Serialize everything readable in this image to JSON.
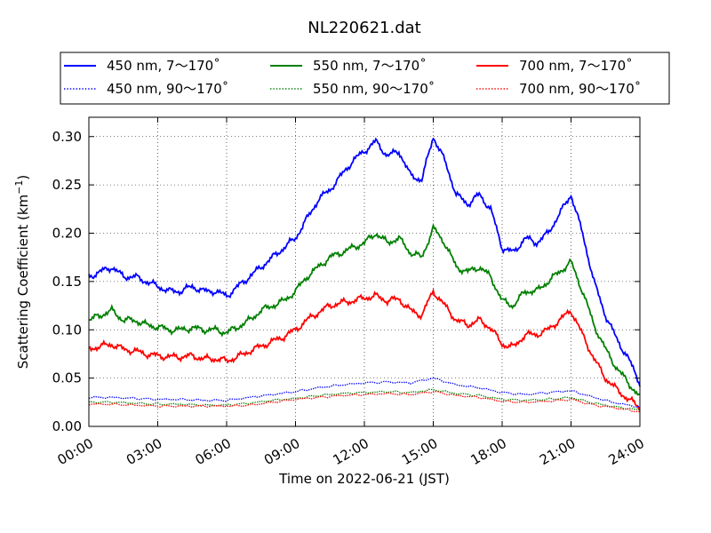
{
  "chart_data": {
    "type": "line",
    "title": "NL220621.dat",
    "xlabel": "Time on 2022-06-21 (JST)",
    "ylabel": "Scattering Coefficient (km",
    "ylabel_sup": "−1",
    "ylabel_end": ")",
    "xlim": [
      0,
      24
    ],
    "ylim": [
      0,
      0.32
    ],
    "x_ticks": [
      0,
      3,
      6,
      9,
      12,
      15,
      18,
      21,
      24
    ],
    "x_tick_labels": [
      "00:00",
      "03:00",
      "06:00",
      "09:00",
      "12:00",
      "15:00",
      "18:00",
      "21:00",
      "24:00"
    ],
    "y_ticks": [
      0.0,
      0.05,
      0.1,
      0.15,
      0.2,
      0.25,
      0.3
    ],
    "y_tick_labels": [
      "0.00",
      "0.05",
      "0.10",
      "0.15",
      "0.20",
      "0.25",
      "0.30"
    ],
    "grid": true,
    "legend_position": "top",
    "series": [
      {
        "name": "450 nm, 7～170˚",
        "color": "#0000ff",
        "style": "solid",
        "x": [
          0,
          0.5,
          1,
          1.5,
          2,
          2.5,
          3,
          3.5,
          4,
          4.5,
          5,
          5.5,
          6,
          6.5,
          7,
          7.5,
          8,
          8.5,
          9,
          9.5,
          10,
          10.5,
          11,
          11.5,
          12,
          12.5,
          13,
          13.5,
          14,
          14.5,
          15,
          15.5,
          16,
          16.5,
          17,
          17.5,
          18,
          18.5,
          19,
          19.5,
          20,
          20.5,
          21,
          21.5,
          22,
          22.5,
          23,
          23.5,
          24
        ],
        "y": [
          0.155,
          0.16,
          0.165,
          0.155,
          0.155,
          0.15,
          0.145,
          0.14,
          0.14,
          0.145,
          0.14,
          0.14,
          0.135,
          0.145,
          0.155,
          0.165,
          0.175,
          0.185,
          0.195,
          0.215,
          0.235,
          0.245,
          0.26,
          0.275,
          0.285,
          0.295,
          0.28,
          0.285,
          0.26,
          0.255,
          0.3,
          0.275,
          0.24,
          0.23,
          0.24,
          0.225,
          0.185,
          0.18,
          0.195,
          0.19,
          0.2,
          0.22,
          0.24,
          0.2,
          0.15,
          0.115,
          0.09,
          0.07,
          0.045
        ]
      },
      {
        "name": "550 nm, 7～170˚",
        "color": "#008000",
        "style": "solid",
        "x": [
          0,
          0.5,
          1,
          1.5,
          2,
          2.5,
          3,
          3.5,
          4,
          4.5,
          5,
          5.5,
          6,
          6.5,
          7,
          7.5,
          8,
          8.5,
          9,
          9.5,
          10,
          10.5,
          11,
          11.5,
          12,
          12.5,
          13,
          13.5,
          14,
          14.5,
          15,
          15.5,
          16,
          16.5,
          17,
          17.5,
          18,
          18.5,
          19,
          19.5,
          20,
          20.5,
          21,
          21.5,
          22,
          22.5,
          23,
          23.5,
          24
        ],
        "y": [
          0.11,
          0.115,
          0.12,
          0.11,
          0.11,
          0.105,
          0.103,
          0.1,
          0.1,
          0.102,
          0.1,
          0.1,
          0.097,
          0.103,
          0.11,
          0.12,
          0.125,
          0.13,
          0.14,
          0.155,
          0.165,
          0.175,
          0.18,
          0.185,
          0.19,
          0.2,
          0.19,
          0.195,
          0.18,
          0.175,
          0.205,
          0.19,
          0.165,
          0.16,
          0.165,
          0.155,
          0.13,
          0.125,
          0.14,
          0.14,
          0.15,
          0.16,
          0.17,
          0.14,
          0.105,
          0.08,
          0.06,
          0.045,
          0.03
        ]
      },
      {
        "name": "700 nm, 7～170˚",
        "color": "#ff0000",
        "style": "solid",
        "x": [
          0,
          0.5,
          1,
          1.5,
          2,
          2.5,
          3,
          3.5,
          4,
          4.5,
          5,
          5.5,
          6,
          6.5,
          7,
          7.5,
          8,
          8.5,
          9,
          9.5,
          10,
          10.5,
          11,
          11.5,
          12,
          12.5,
          13,
          13.5,
          14,
          14.5,
          15,
          15.5,
          16,
          16.5,
          17,
          17.5,
          18,
          18.5,
          19,
          19.5,
          20,
          20.5,
          21,
          21.5,
          22,
          22.5,
          23,
          23.5,
          24
        ],
        "y": [
          0.08,
          0.083,
          0.085,
          0.08,
          0.078,
          0.075,
          0.073,
          0.072,
          0.072,
          0.073,
          0.07,
          0.07,
          0.068,
          0.072,
          0.078,
          0.083,
          0.088,
          0.093,
          0.1,
          0.11,
          0.118,
          0.125,
          0.128,
          0.13,
          0.133,
          0.135,
          0.13,
          0.132,
          0.12,
          0.115,
          0.14,
          0.125,
          0.11,
          0.105,
          0.11,
          0.102,
          0.085,
          0.082,
          0.095,
          0.095,
          0.1,
          0.11,
          0.12,
          0.095,
          0.07,
          0.05,
          0.038,
          0.028,
          0.02
        ]
      },
      {
        "name": "450 nm, 90～170˚",
        "color": "#0000ff",
        "style": "dotted",
        "x": [
          0,
          1,
          2,
          3,
          4,
          5,
          6,
          7,
          8,
          9,
          10,
          11,
          12,
          13,
          14,
          15,
          16,
          17,
          18,
          19,
          20,
          21,
          22,
          23,
          24
        ],
        "y": [
          0.03,
          0.03,
          0.029,
          0.028,
          0.028,
          0.027,
          0.027,
          0.03,
          0.033,
          0.036,
          0.04,
          0.043,
          0.045,
          0.046,
          0.045,
          0.05,
          0.043,
          0.04,
          0.035,
          0.033,
          0.035,
          0.037,
          0.03,
          0.024,
          0.02
        ]
      },
      {
        "name": "550 nm, 90～170˚",
        "color": "#008000",
        "style": "dotted",
        "x": [
          0,
          1,
          2,
          3,
          4,
          5,
          6,
          7,
          8,
          9,
          10,
          11,
          12,
          13,
          14,
          15,
          16,
          17,
          18,
          19,
          20,
          21,
          22,
          23,
          24
        ],
        "y": [
          0.025,
          0.025,
          0.024,
          0.023,
          0.023,
          0.022,
          0.022,
          0.024,
          0.027,
          0.029,
          0.032,
          0.034,
          0.035,
          0.036,
          0.035,
          0.038,
          0.034,
          0.032,
          0.028,
          0.027,
          0.028,
          0.03,
          0.024,
          0.02,
          0.017
        ]
      },
      {
        "name": "700 nm, 90～170˚",
        "color": "#ff0000",
        "style": "dotted",
        "x": [
          0,
          1,
          2,
          3,
          4,
          5,
          6,
          7,
          8,
          9,
          10,
          11,
          12,
          13,
          14,
          15,
          16,
          17,
          18,
          19,
          20,
          21,
          22,
          23,
          24
        ],
        "y": [
          0.023,
          0.023,
          0.022,
          0.021,
          0.021,
          0.021,
          0.021,
          0.022,
          0.025,
          0.028,
          0.03,
          0.032,
          0.033,
          0.034,
          0.033,
          0.036,
          0.032,
          0.03,
          0.026,
          0.025,
          0.026,
          0.028,
          0.022,
          0.019,
          0.015
        ]
      }
    ],
    "legend_rows": [
      [
        "450 nm, 7～170˚",
        "550 nm, 7～170˚",
        "700 nm, 7～170˚"
      ],
      [
        "450 nm, 90～170˚",
        "550 nm, 90～170˚",
        "700 nm, 90～170˚"
      ]
    ]
  }
}
